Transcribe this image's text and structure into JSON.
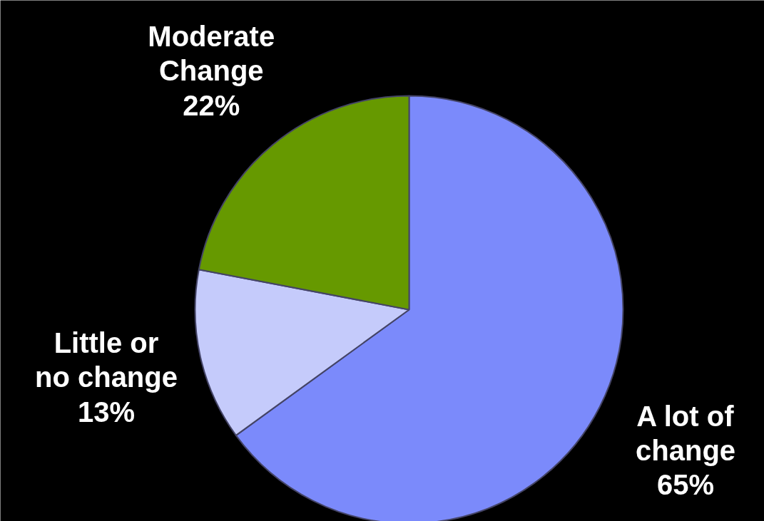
{
  "chart_data": {
    "type": "pie",
    "categories": [
      "A lot of change",
      "Little or no change",
      "Moderate Change"
    ],
    "values": [
      65,
      13,
      22
    ],
    "colors": [
      "#7b8afb",
      "#c5cbfb",
      "#669900"
    ],
    "value_labels": [
      "65%",
      "13%",
      "22%"
    ]
  }
}
